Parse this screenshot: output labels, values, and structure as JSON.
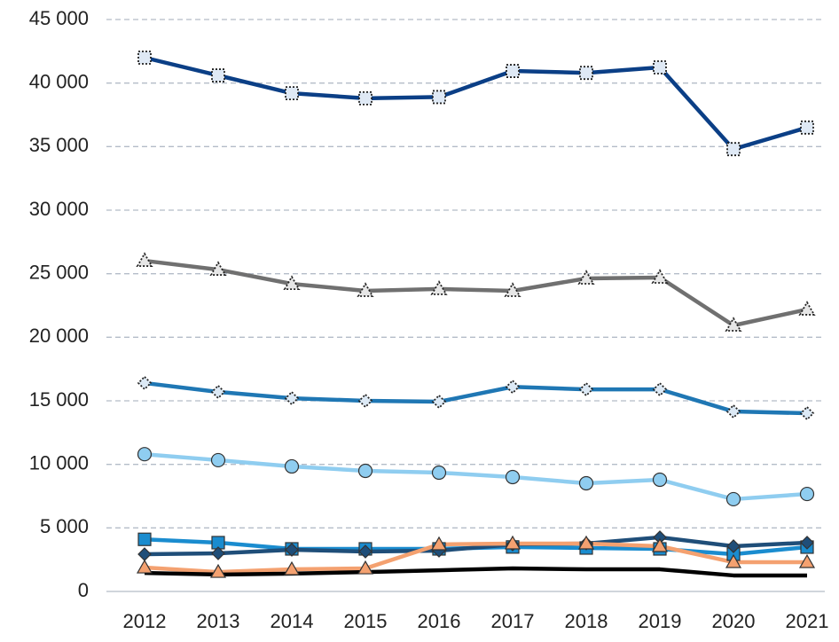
{
  "chart_data": {
    "type": "line",
    "categories": [
      "2012",
      "2013",
      "2014",
      "2015",
      "2016",
      "2017",
      "2018",
      "2019",
      "2020",
      "2021"
    ],
    "ylim": [
      0,
      45000
    ],
    "yticks": [
      0,
      {
        "value": 5000,
        "label": "5 000"
      },
      {
        "value": 10000,
        "label": "10 000"
      },
      {
        "value": 15000,
        "label": "15 000"
      },
      {
        "value": 20000,
        "label": "20 000"
      },
      {
        "value": 25000,
        "label": "25 000"
      },
      {
        "value": 30000,
        "label": "30 000"
      },
      {
        "value": 35000,
        "label": "35 000"
      },
      {
        "value": 40000,
        "label": "40 000"
      },
      {
        "value": 45000,
        "label": "45 000"
      }
    ],
    "grid": true,
    "series": [
      {
        "color": "#0b3f86",
        "marker": "square",
        "marker_fill": "#dfe9f5",
        "marker_stroke": "dotted",
        "values": [
          42000,
          40600,
          39200,
          38800,
          38900,
          40950,
          40800,
          41230,
          34800,
          36500
        ]
      },
      {
        "color": "#707070",
        "marker": "triangle",
        "marker_fill": "#e6e6e6",
        "marker_stroke": "dotted",
        "values": [
          26020,
          25320,
          24200,
          23650,
          23800,
          23650,
          24630,
          24700,
          20930,
          22190
        ]
      },
      {
        "color": "#1f77b4",
        "marker": "diamond",
        "marker_fill": "#dce9f5",
        "marker_stroke": "dotted",
        "values": [
          16400,
          15700,
          15200,
          15000,
          14930,
          16100,
          15900,
          15900,
          14160,
          14020
        ]
      },
      {
        "color": "#8fcdf0",
        "marker": "circle",
        "marker_fill": "#8fcdf0",
        "marker_stroke": "solid",
        "values": [
          10800,
          10330,
          9840,
          9490,
          9350,
          9000,
          8510,
          8790,
          7260,
          7670
        ]
      },
      {
        "color": "#1a8ccf",
        "marker": "square",
        "marker_fill": "#1a8ccf",
        "marker_stroke": "solid",
        "values": [
          4100,
          3840,
          3350,
          3350,
          3350,
          3500,
          3420,
          3350,
          2930,
          3490
        ]
      },
      {
        "color": "#1f4e79",
        "marker": "diamond",
        "marker_fill": "#1f4e79",
        "marker_stroke": "solid",
        "values": [
          2930,
          3000,
          3280,
          3140,
          3210,
          3700,
          3770,
          4260,
          3560,
          3840
        ]
      },
      {
        "color": "#f4a170",
        "marker": "triangle",
        "marker_fill": "#f4a170",
        "marker_stroke": "solid",
        "values": [
          1880,
          1530,
          1740,
          1810,
          3700,
          3770,
          3770,
          3560,
          2300,
          2300
        ]
      },
      {
        "color": "#000000",
        "marker": "none",
        "values": [
          1460,
          1330,
          1400,
          1530,
          1670,
          1810,
          1740,
          1740,
          1260,
          1260
        ]
      }
    ]
  }
}
